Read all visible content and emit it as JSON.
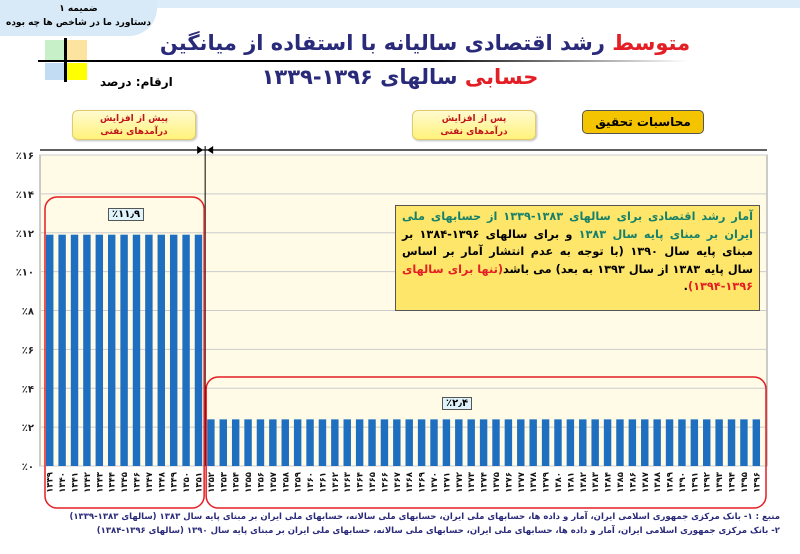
{
  "annex": {
    "line1": "ضمیمه ۱",
    "line2": "دستاورد ما در شاخص ها چه بوده"
  },
  "title": {
    "line1_red": "متوسط",
    "line1_rest": " رشد اقتصادی سالیانه با استفاده از میانگین",
    "line2_red": "حسابی",
    "line2_rest": " سالهای ۱۳۹۶-۱۳۳۹"
  },
  "units": "ارقام: درصد",
  "labels": {
    "before_l1": "پیش از افزایش",
    "before_l2": "درآمدهای نفتی",
    "after_l1": "پس از افزایش",
    "after_l2": "درآمدهای نفتی",
    "research": "محاسبات تحقیق"
  },
  "note": {
    "p1": "آمار رشد اقتصادی برای سالهای ۱۳۸۳-۱۳۳۹ از حسابهای ملی ایران بر مبنای پایه سال ۱۳۸۳",
    "p2": " و برای سالهای ۱۳۹۶-۱۳۸۴ بر مبنای پایه سال ۱۳۹۰ (با توجه به عدم انتشار آمار بر اساس سال پایه ۱۳۸۳ از سال ۱۳۹۳ به بعد) می باشد",
    "p3": "(تنها برای سالهای ۱۳۹۶-۱۳۹۴)",
    "p4": "."
  },
  "source": {
    "line1": "منبع : ۱- بانک مرکزی جمهوری اسلامی ایران، آمار و داده ها، حسابهای ملی ایران، حسابهای ملی سالانه، حسابهای ملی ایران بر مبنای پایه سال ۱۳۸۳ (سالهای ۱۳۸۳-۱۳۳۹)",
    "line2": "۲- بانک مرکزی جمهوری اسلامی ایران، آمار و داده ها، حسابهای ملی ایران، حسابهای ملی سالانه، حسابهای ملی ایران بر مبنای پایه سال ۱۳۹۰ (سالهای ۱۳۹۶-۱۳۸۴)"
  },
  "colors": {
    "bar": "#1f6fc0",
    "highlight": "#e31e24",
    "grid": "#cccccc"
  },
  "chart_data": {
    "type": "bar",
    "title": "متوسط رشد اقتصادی سالیانه با استفاده از میانگین حسابی سالهای ۱۳۹۶-۱۳۳۹",
    "xlabel": "",
    "ylabel": "ارقام: درصد",
    "ylim": [
      0,
      16
    ],
    "yticks": [
      0,
      2,
      4,
      6,
      8,
      10,
      12,
      14,
      16
    ],
    "ytick_labels": [
      "٪۰",
      "٪۲",
      "٪۴",
      "٪۶",
      "٪۸",
      "٪۱۰",
      "٪۱۲",
      "٪۱۴",
      "٪۱۶"
    ],
    "grid": true,
    "x_start": 1339,
    "x_end": 1396,
    "groups": [
      {
        "name": "پیش از افزایش درآمدهای نفتی",
        "from": 1339,
        "to": 1351,
        "value": 11.9,
        "label": "٪۱۱٫۹"
      },
      {
        "name": "پس از افزایش درآمدهای نفتی",
        "from": 1352,
        "to": 1396,
        "value": 2.4,
        "label": "٪۲٫۴"
      }
    ]
  }
}
